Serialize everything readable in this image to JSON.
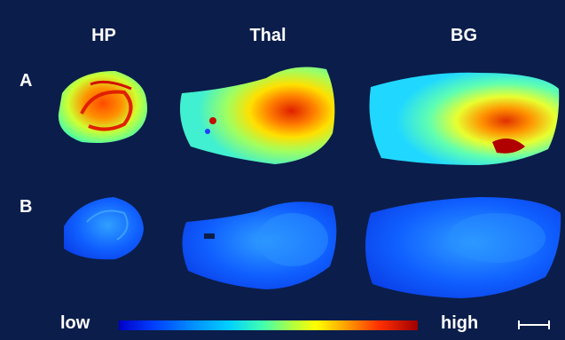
{
  "columns": [
    "HP",
    "Thal",
    "BG"
  ],
  "rows": [
    "A",
    "B"
  ],
  "colorbar": {
    "low_label": "low",
    "high_label": "high",
    "colors": [
      "#0000c8",
      "#0040ff",
      "#0090ff",
      "#00d0ff",
      "#40ffb0",
      "#b0ff40",
      "#ffff00",
      "#ffa000",
      "#ff3000",
      "#a00000"
    ]
  },
  "colors": {
    "background": "#0b1d4a",
    "text": "#ffffff"
  }
}
